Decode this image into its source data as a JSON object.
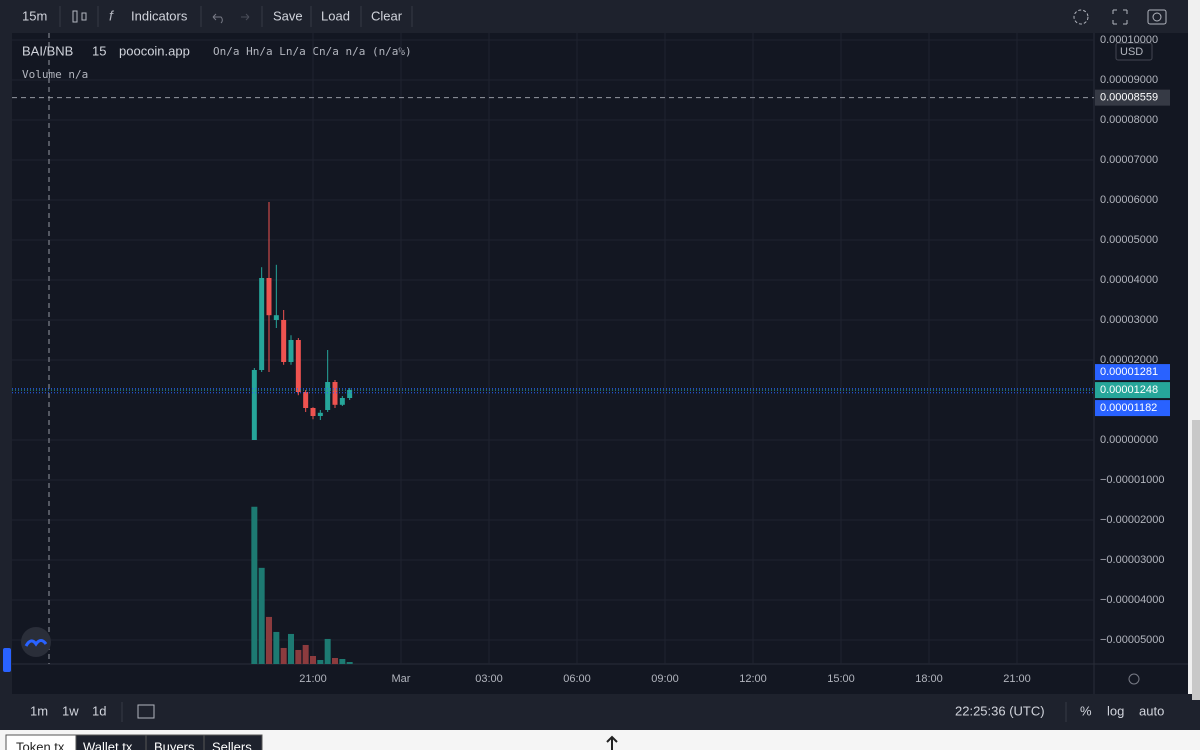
{
  "toolbar": {
    "interval": "15m",
    "indicators": "Indicators",
    "save": "Save",
    "load": "Load",
    "clear": "Clear"
  },
  "legend": {
    "symbol": "BAI/BNB",
    "interval": "15",
    "source": "poocoin.app",
    "ohlc": "On/a Hn/a Ln/a Cn/a n/a (n/a%)",
    "volume": "Volume n/a"
  },
  "currency": "USD",
  "chart_data": {
    "type": "candlestick",
    "x": [
      "19:00",
      "19:15",
      "19:30",
      "19:45",
      "20:00",
      "20:15",
      "20:30",
      "20:45",
      "21:00",
      "21:15",
      "21:30",
      "21:45",
      "22:00",
      "22:15"
    ],
    "open": [
      0,
      1.75e-05,
      4.05e-05,
      3e-05,
      3e-05,
      1.95e-05,
      2.5e-05,
      1.2e-05,
      8e-06,
      6e-06,
      7.5e-06,
      1.45e-05,
      8.8e-06,
      1.05e-05
    ],
    "high": [
      1.8e-05,
      4.32e-05,
      5.95e-05,
      4.38e-05,
      3.25e-05,
      2.62e-05,
      2.55e-05,
      1.25e-05,
      8.2e-06,
      7.5e-06,
      2.25e-05,
      1.5e-05,
      1.1e-05,
      1.3e-05
    ],
    "low": [
      0,
      1.7e-05,
      1.7e-05,
      2.8e-05,
      1.88e-05,
      1.88e-05,
      1.12e-05,
      7e-06,
      5.2e-06,
      5e-06,
      7e-06,
      8e-06,
      8.5e-06,
      1e-05
    ],
    "close": [
      1.75e-05,
      4.05e-05,
      3.12e-05,
      3.12e-05,
      1.95e-05,
      2.5e-05,
      1.2e-05,
      8e-06,
      6e-06,
      6.8e-06,
      1.45e-05,
      8.8e-06,
      1.05e-05,
      1.25e-05
    ],
    "volume": [
      157,
      96,
      47,
      32,
      16,
      30,
      14,
      19,
      8,
      4,
      25,
      6,
      5,
      2
    ],
    "up_color": "#26a69a",
    "down_color": "#ef5350",
    "volume_up_color": "#1d7a72",
    "volume_down_color": "#8c3b3e",
    "ylim": [
      -5.6e-05,
      0.00010175
    ],
    "yticks": [
      {
        "value": 0.0001,
        "label": "0.00010000"
      },
      {
        "value": 9e-05,
        "label": "0.00009000"
      },
      {
        "value": 8e-05,
        "label": "0.00008000"
      },
      {
        "value": 7e-05,
        "label": "0.00007000"
      },
      {
        "value": 6e-05,
        "label": "0.00006000"
      },
      {
        "value": 5e-05,
        "label": "0.00005000"
      },
      {
        "value": 4e-05,
        "label": "0.00004000"
      },
      {
        "value": 3e-05,
        "label": "0.00003000"
      },
      {
        "value": 2e-05,
        "label": "0.00002000"
      },
      {
        "value": 0,
        "label": "0.00000000"
      },
      {
        "value": -1e-05,
        "label": "−0.00001000"
      },
      {
        "value": -2e-05,
        "label": "−0.00002000"
      },
      {
        "value": -3e-05,
        "label": "−0.00003000"
      },
      {
        "value": -4e-05,
        "label": "−0.00004000"
      },
      {
        "value": -5e-05,
        "label": "−0.00005000"
      }
    ],
    "y2lim": [
      0,
      630
    ],
    "xticks": [
      "21:00",
      "Mar",
      "03:00",
      "06:00",
      "09:00",
      "12:00",
      "15:00",
      "18:00",
      "21:00"
    ],
    "grid": true,
    "crosshair_price": 8.559e-05,
    "price_lines": [
      {
        "value": 1.281e-05,
        "color": "#2962ff"
      },
      {
        "value": 1.248e-05,
        "color": "#26a69a"
      },
      {
        "value": 1.182e-05,
        "color": "#2962ff"
      }
    ]
  },
  "bottom_bar": {
    "ranges": [
      "1m",
      "1w",
      "1d"
    ],
    "clock": "22:25:36 (UTC)",
    "percent": "%",
    "log": "log",
    "auto": "auto"
  },
  "tabs": [
    "Token tx",
    "Wallet tx",
    "Buyers",
    "Sellers"
  ]
}
